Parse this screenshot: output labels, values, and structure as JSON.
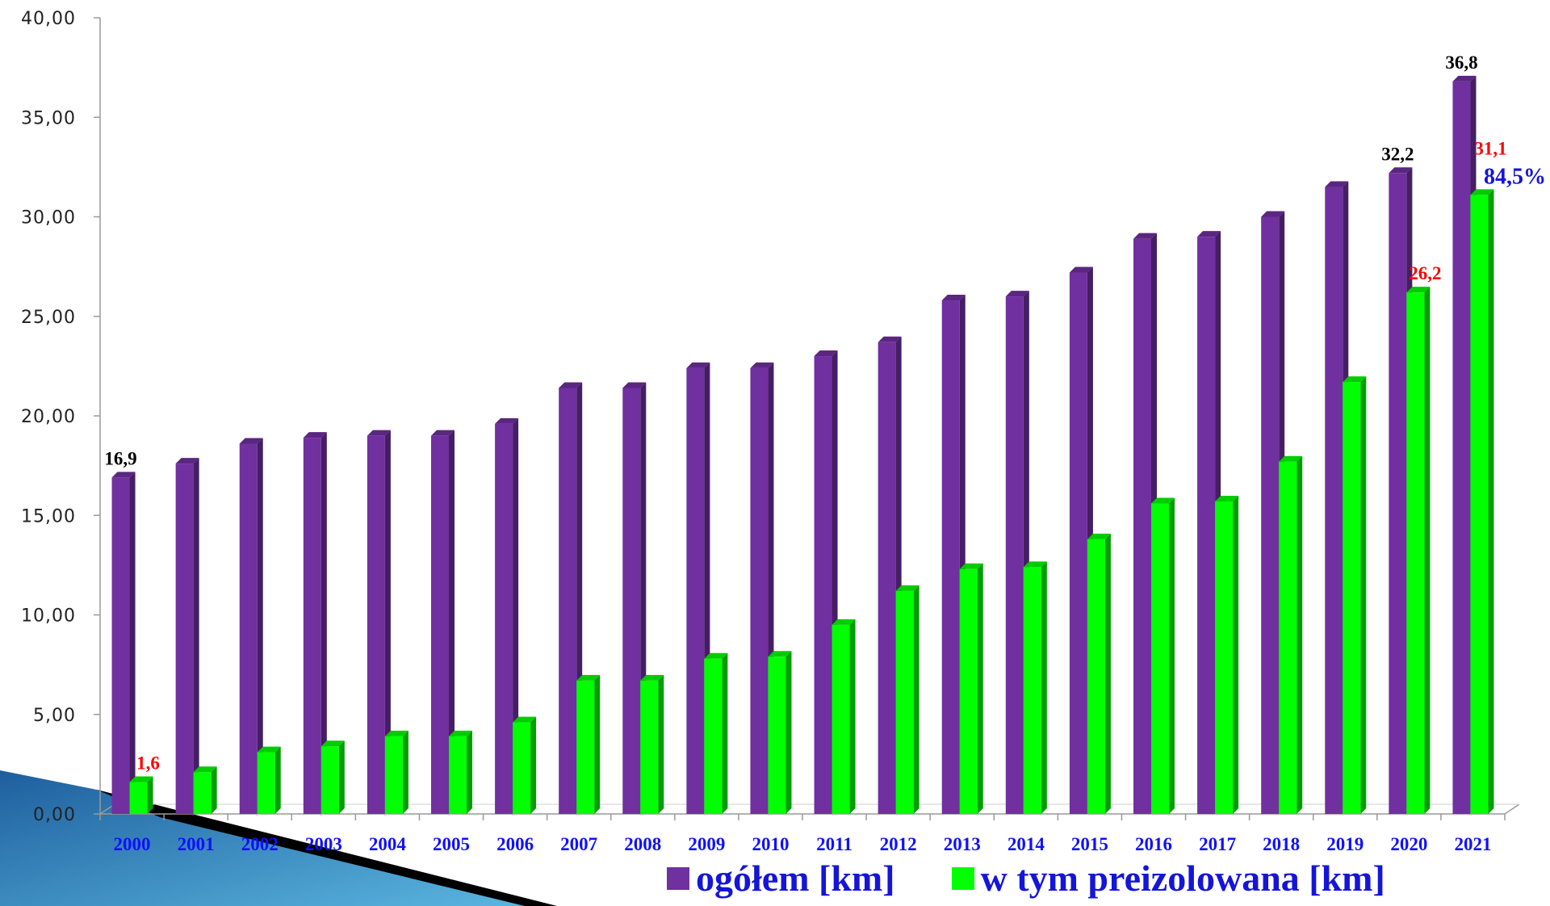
{
  "chart_data": {
    "type": "bar",
    "categories": [
      "2000",
      "2001",
      "2002",
      "2003",
      "2004",
      "2005",
      "2006",
      "2007",
      "2008",
      "2009",
      "2010",
      "2011",
      "2012",
      "2013",
      "2014",
      "2015",
      "2016",
      "2017",
      "2018",
      "2019",
      "2020",
      "2021"
    ],
    "series": [
      {
        "name": "ogółem [km]",
        "color": "#7030a0",
        "values": [
          16.9,
          17.6,
          18.6,
          18.9,
          19.0,
          19.0,
          19.6,
          21.4,
          21.4,
          22.4,
          22.4,
          23.0,
          23.7,
          25.8,
          26.0,
          27.2,
          28.9,
          29.0,
          30.0,
          31.5,
          32.2,
          36.8
        ]
      },
      {
        "name": "w tym preizolowana  [km]",
        "color": "#00ff00",
        "values": [
          1.6,
          2.1,
          3.1,
          3.4,
          3.9,
          3.9,
          4.6,
          6.7,
          6.7,
          7.8,
          7.9,
          9.5,
          11.2,
          12.3,
          12.4,
          13.8,
          15.6,
          15.7,
          17.7,
          21.7,
          26.2,
          31.1
        ]
      }
    ],
    "ylim": [
      0,
      40
    ],
    "yticks": [
      "0,00",
      "5,00",
      "10,00",
      "15,00",
      "20,00",
      "25,00",
      "30,00",
      "35,00",
      "40,00"
    ],
    "data_labels": [
      {
        "series": 0,
        "index": 0,
        "text": "16,9",
        "color": "#000000"
      },
      {
        "series": 1,
        "index": 0,
        "text": "1,6",
        "color": "#ff0000"
      },
      {
        "series": 0,
        "index": 20,
        "text": "32,2",
        "color": "#000000"
      },
      {
        "series": 1,
        "index": 20,
        "text": "26,2",
        "color": "#ff0000"
      },
      {
        "series": 0,
        "index": 21,
        "text": "36,8",
        "color": "#000000"
      },
      {
        "series": 1,
        "index": 21,
        "text": "31,1",
        "color": "#ff0000"
      }
    ],
    "annotation": {
      "text": "84,5%",
      "color": "#1515d8"
    },
    "grid": false,
    "legend_position": "bottom"
  },
  "legend": {
    "items": [
      {
        "label": "ogółem [km]",
        "color": "#7030a0"
      },
      {
        "label": "w tym preizolowana  [km]",
        "color": "#00ff00"
      }
    ]
  }
}
